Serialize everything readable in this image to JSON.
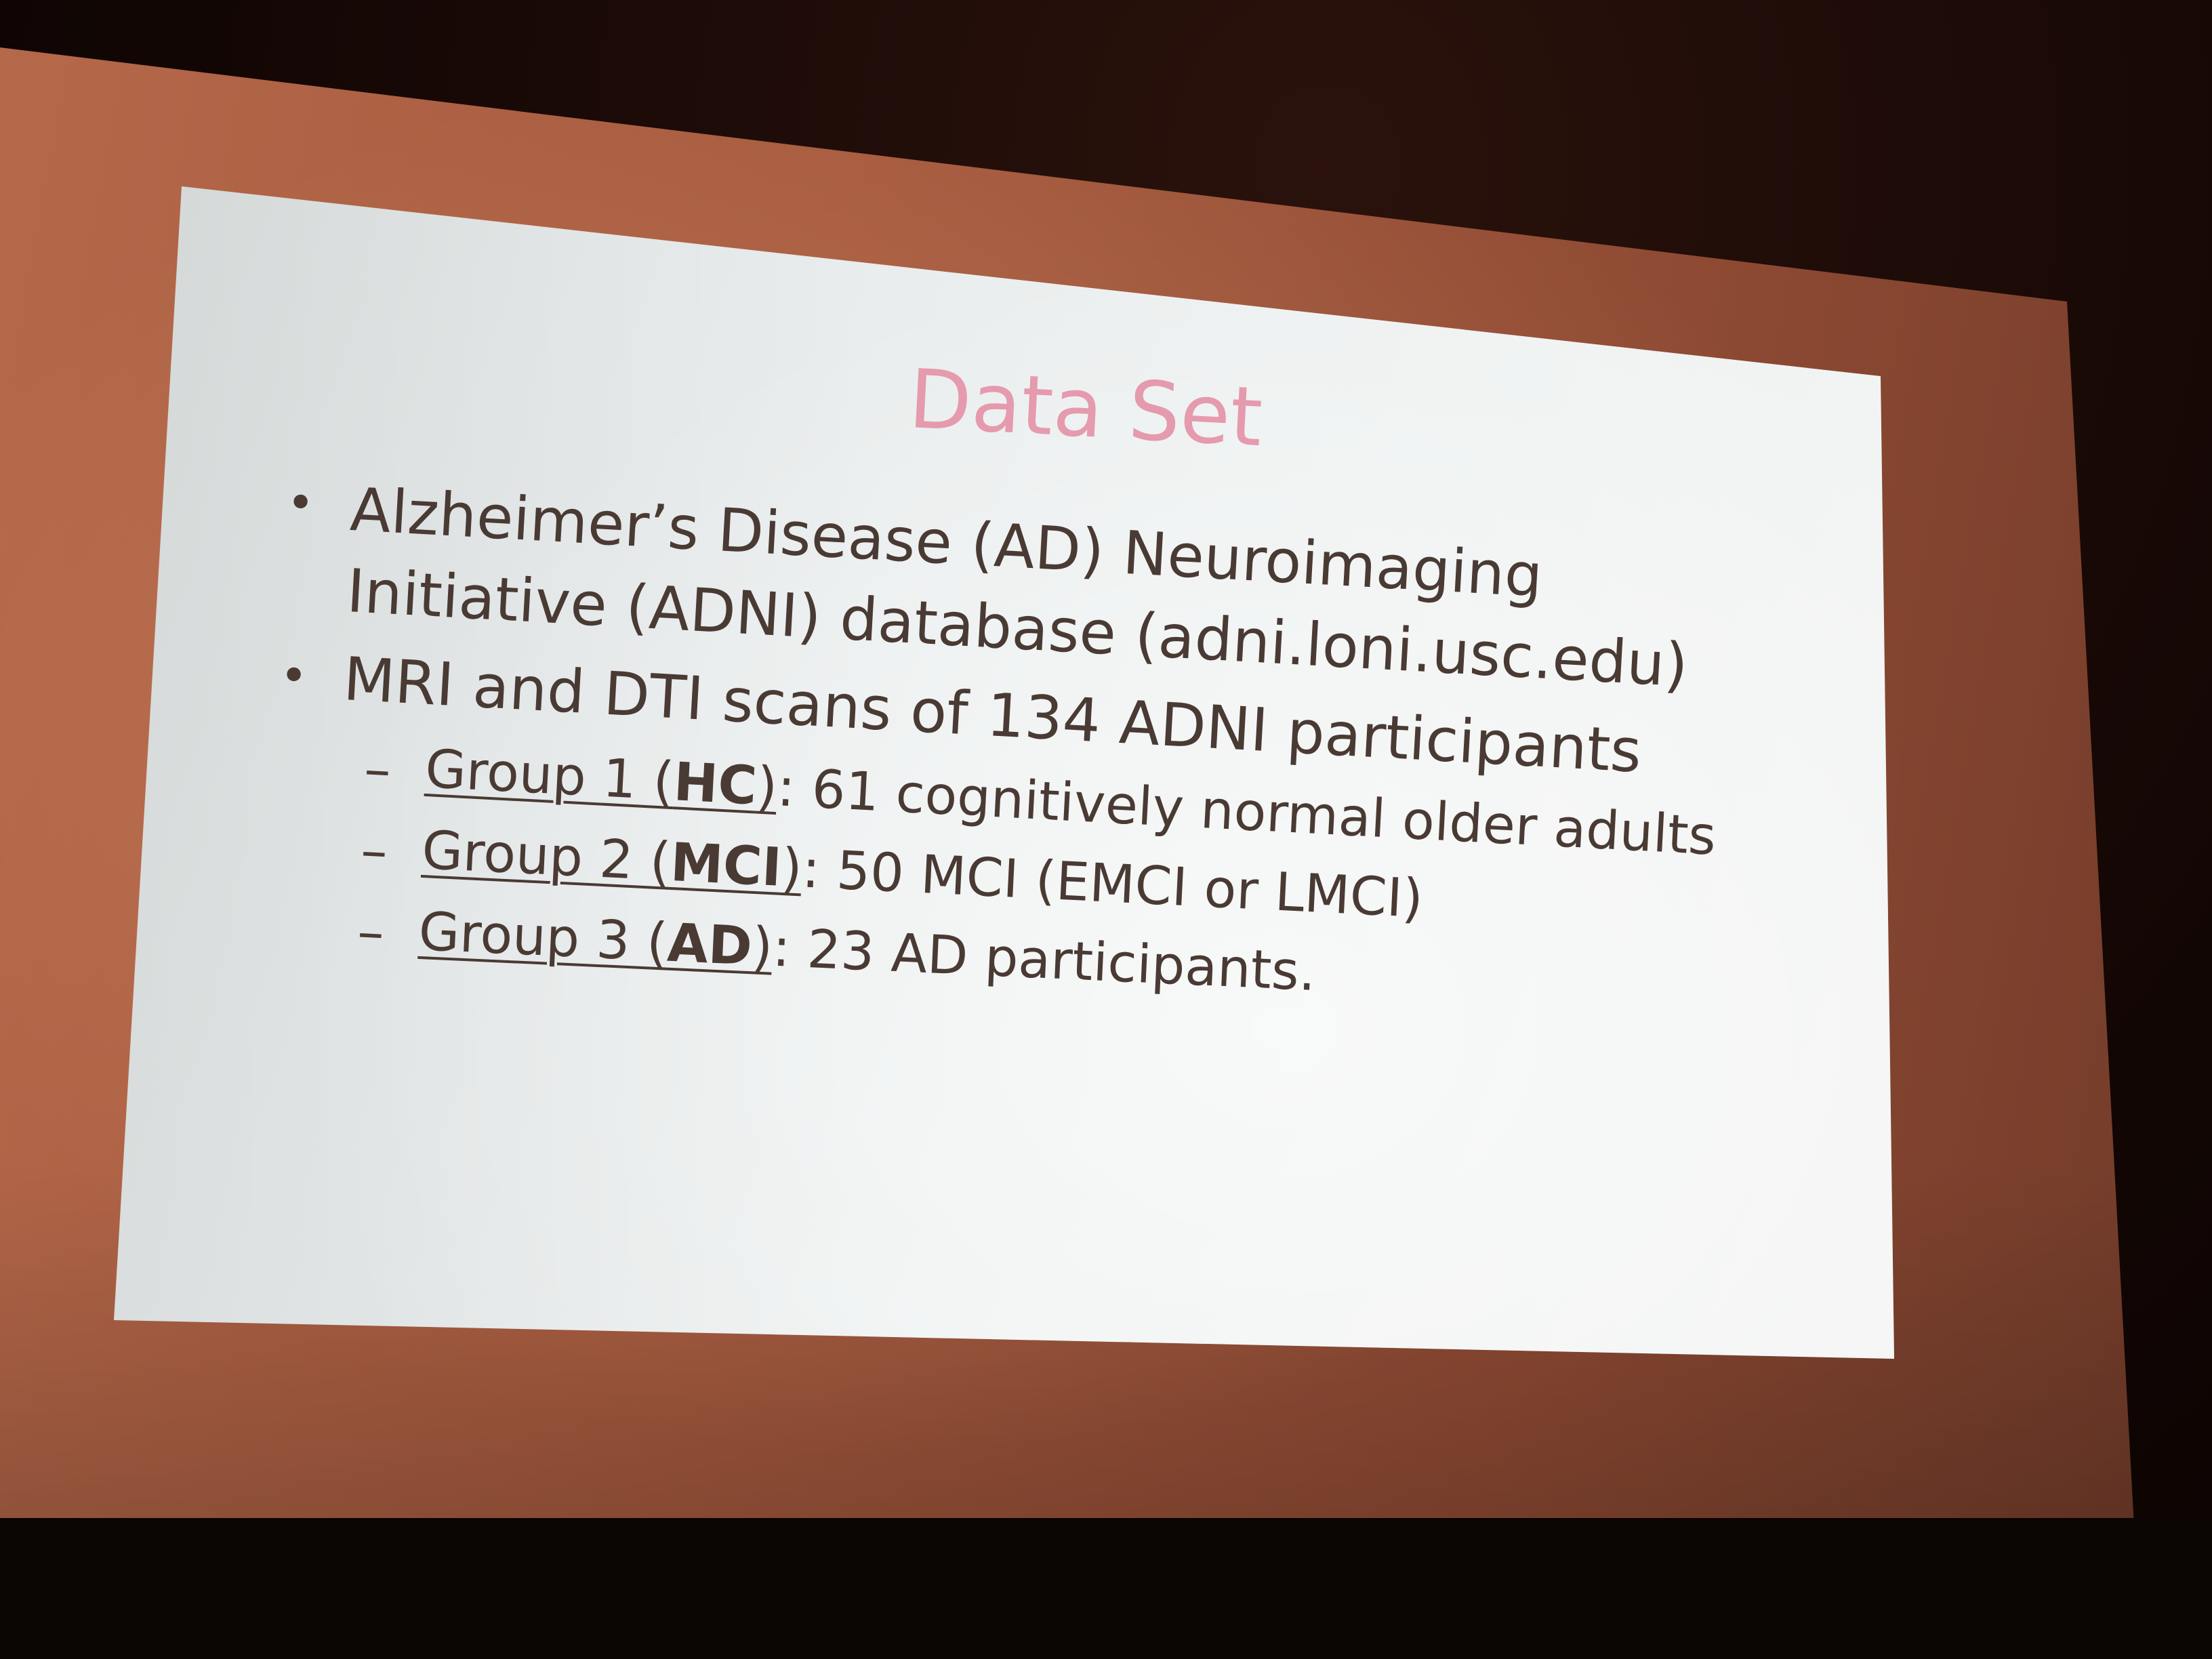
{
  "slide": {
    "title": "Data Set",
    "bullets": [
      {
        "lines": [
          "Alzheimer’s Disease (AD) Neuroimaging",
          "Initiative (ADNI) database (adni.loni.usc.edu)"
        ]
      },
      {
        "lines": [
          "MRI and DTI scans of 134 ADNI participants"
        ],
        "subitems": [
          {
            "prefix": "Group 1 (",
            "abbr": "HC",
            "suffix": ")",
            "rest": ": 61 cognitively normal older adults"
          },
          {
            "prefix": "Group 2 (",
            "abbr": "MCI",
            "suffix": ")",
            "rest": ": 50 MCI (EMCI or LMCI)"
          },
          {
            "prefix": "Group 3 (",
            "abbr": "AD",
            "suffix": ")",
            "rest": ": 23 AD participants."
          }
        ]
      }
    ],
    "colors": {
      "title": "#e59aae",
      "body_text": "#4a3a34",
      "slide_background": "#eef1f1",
      "screen_surround": "#a65a3e"
    }
  }
}
